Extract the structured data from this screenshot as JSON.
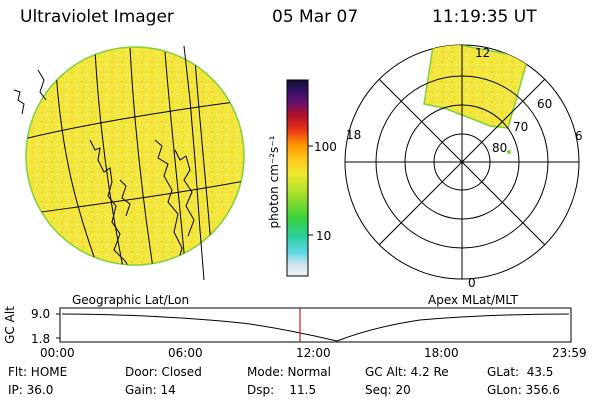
{
  "header": {
    "title": "Ultraviolet Imager",
    "date": "05 Mar 07",
    "time": "11:19:35 UT"
  },
  "colorbar": {
    "unit_label": "photon cm⁻²s⁻¹",
    "ticks": [
      "100",
      "10"
    ]
  },
  "polar": {
    "mlt_labels": {
      "top": "12",
      "bottom": "0",
      "left": "18",
      "right": "6"
    },
    "lat_labels": [
      "60",
      "70",
      "80"
    ]
  },
  "panels": {
    "left_label": "Geographic Lat/Lon",
    "right_label": "Apex MLat/MLT"
  },
  "altitude_plot": {
    "ylabel": "GC Alt",
    "yticks": [
      "9.0",
      "1.8"
    ],
    "xticks": [
      "00:00",
      "06:00",
      "12:00",
      "18:00",
      "23:59"
    ]
  },
  "status": {
    "row1": {
      "flt": "Flt: HOME",
      "door": "Door: Closed",
      "mode": "Mode: Normal",
      "gcalt": "GC Alt: 4.2 Re",
      "glat": "GLat:  43.5"
    },
    "row2": {
      "ip": "IP: 36.0",
      "gain": "Gain: 14",
      "dsp": "Dsp:    11.5",
      "seq": "Seq: 20",
      "glon": "GLon: 356.6"
    }
  },
  "colors": {
    "disk_fill": "#f2e640",
    "disk_edge": "#7fd03a",
    "cursor": "#c02020"
  }
}
